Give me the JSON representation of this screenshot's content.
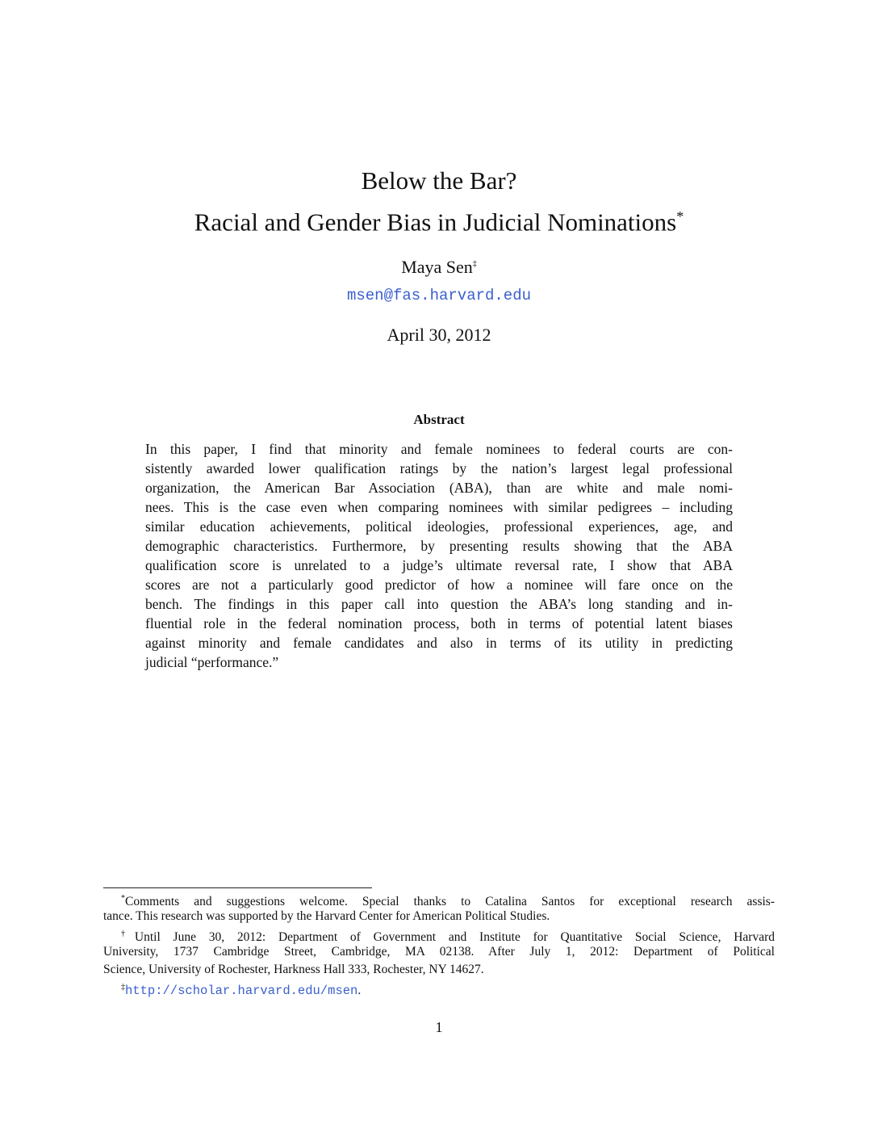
{
  "title": {
    "line1": "Below the Bar?",
    "line2": "Racial and Gender Bias in Judicial Nominations",
    "line2_mark": "*"
  },
  "author": {
    "name": "Maya Sen",
    "mark": "‡",
    "email": "msen@fas.harvard.edu"
  },
  "date": "April 30, 2012",
  "abstract": {
    "heading": "Abstract",
    "lines": [
      "In this paper, I find that minority and female nominees to federal courts are con-",
      "sistently awarded lower qualification ratings by the nation’s largest legal professional",
      "organization, the American Bar Association (ABA), than are white and male nomi-",
      "nees. This is the case even when comparing nominees with similar pedigrees – including",
      "similar education achievements, political ideologies, professional experiences, age, and",
      "demographic characteristics. Furthermore, by presenting results showing that the ABA",
      "qualification score is unrelated to a judge’s ultimate reversal rate, I show that ABA",
      "scores are not a particularly good predictor of how a nominee will fare once on the",
      "bench. The findings in this paper call into question the ABA’s long standing and in-",
      "fluential role in the federal nomination process, both in terms of potential latent biases",
      "against minority and female candidates and also in terms of its utility in predicting",
      "judicial “performance.”"
    ]
  },
  "footnotes": {
    "fn1": {
      "mark": "*",
      "lines": [
        "Comments and suggestions welcome. Special thanks to Catalina Santos for exceptional research assis-",
        "tance. This research was supported by the Harvard Center for American Political Studies."
      ]
    },
    "fn2": {
      "mark": "†",
      "lines": [
        "Until June 30, 2012: Department of Government and Institute for Quantitative Social Science, Harvard",
        "University, 1737 Cambridge Street, Cambridge, MA 02138.  After July 1, 2012: Department of Political",
        "Science, University of Rochester, Harkness Hall 333, Rochester, NY 14627."
      ]
    },
    "fn3": {
      "mark": "‡",
      "url": "http://scholar.harvard.edu/msen",
      "trail": "."
    }
  },
  "page_number": "1",
  "colors": {
    "link": "#3a5fcd"
  }
}
